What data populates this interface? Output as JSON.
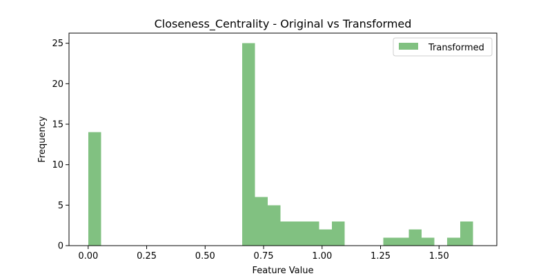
{
  "chart_data": {
    "type": "bar",
    "title": "Closeness_Centrality - Original vs Transformed",
    "xlabel": "Feature Value",
    "ylabel": "Frequency",
    "xlim": [
      -0.082,
      1.747
    ],
    "ylim": [
      0,
      26.25
    ],
    "xticks": [
      0.0,
      0.25,
      0.5,
      0.75,
      1.0,
      1.25,
      1.5
    ],
    "xtick_labels": [
      "0.00",
      "0.25",
      "0.50",
      "0.75",
      "1.00",
      "1.25",
      "1.50"
    ],
    "yticks": [
      0,
      5,
      10,
      15,
      20,
      25
    ],
    "ytick_labels": [
      "0",
      "5",
      "10",
      "15",
      "20",
      "25"
    ],
    "grid": false,
    "legend_position": "top-right",
    "series": [
      {
        "name": "Transformed",
        "color": "#81c181",
        "bin_start": 0.0,
        "bin_width": 0.05483,
        "counts": [
          14,
          0,
          0,
          0,
          0,
          0,
          0,
          0,
          0,
          0,
          0,
          0,
          25,
          6,
          5,
          3,
          3,
          3,
          2,
          3,
          0,
          0,
          0,
          1,
          1,
          2,
          1,
          0,
          1,
          3
        ]
      }
    ]
  }
}
